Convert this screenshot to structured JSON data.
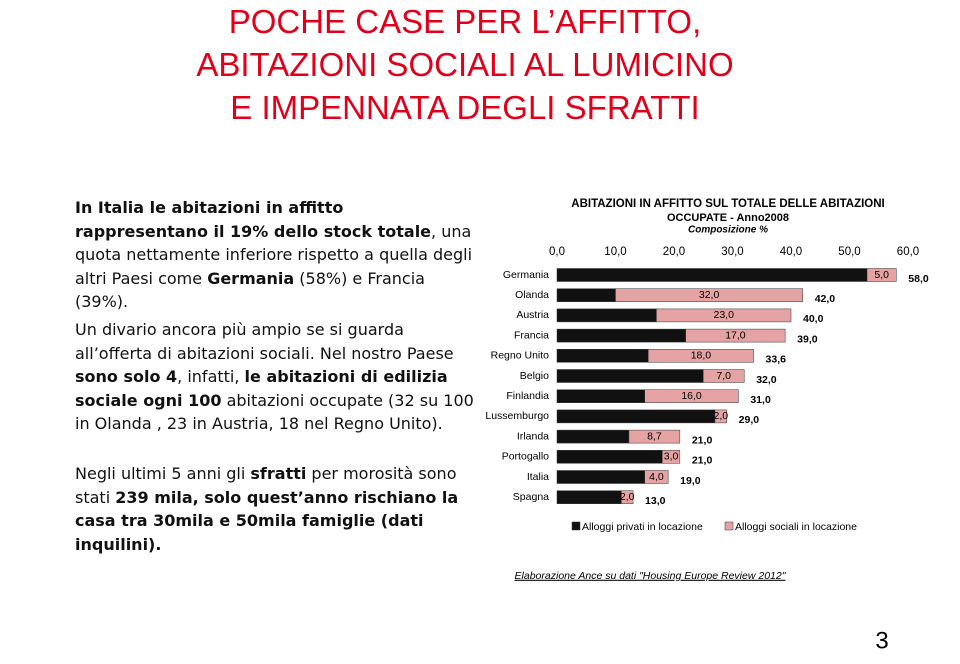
{
  "slide": {
    "title": [
      "POCHE CASE PER L’AFFITTO,",
      "ABITAZIONI SOCIALI AL LUMICINO",
      "E IMPENNATA DEGLI SFRATTI"
    ],
    "paragraphs": [
      {
        "runs": [
          {
            "text": "In Italia le abitazioni in affitto rappresentano il 19% dello stock totale",
            "bold": true
          },
          {
            "text": ", una quota nettamente inferiore rispetto a quella degli altri Paesi come ",
            "bold": false
          },
          {
            "text": "Germania",
            "bold": true
          },
          {
            "text": " (58%) e Francia (39%).",
            "bold": false
          }
        ]
      },
      {
        "runs": [
          {
            "text": "Un divario ancora più ampio se si guarda all’offerta di abitazioni sociali. Nel nostro Paese ",
            "bold": false
          },
          {
            "text": "sono solo 4",
            "bold": true
          },
          {
            "text": ", infatti, ",
            "bold": false
          },
          {
            "text": "le abitazioni di edilizia sociale ogni 100",
            "bold": true
          },
          {
            "text": " abitazioni occupate (32 su 100 in Olanda , 23 in Austria, 18 nel Regno Unito).",
            "bold": false
          }
        ]
      },
      {
        "runs": [
          {
            "text": "Negli ultimi 5 anni gli ",
            "bold": false
          },
          {
            "text": "sfratti",
            "bold": true
          },
          {
            "text": " per morosità sono stati ",
            "bold": false
          },
          {
            "text": "239 mila, solo quest’anno rischiano la casa tra 30mila e 50mila famiglie (dati inquilini).",
            "bold": true
          }
        ]
      }
    ],
    "page_number": "3"
  },
  "chart_data": {
    "type": "stacked-barh",
    "title": [
      "ABITAZIONI IN AFFITTO SUL TOTALE DELLE ABITAZIONI",
      "OCCUPATE - Anno2008",
      "Composizione %"
    ],
    "categories": [
      "Germania",
      "Olanda",
      "Austria",
      "Francia",
      "Regno Unito",
      "Belgio",
      "Finlandia",
      "Lussemburgo",
      "Irlanda",
      "Portogallo",
      "Italia",
      "Spagna"
    ],
    "series": [
      {
        "name": "Alloggi privati in locazione",
        "color": "#111111",
        "values": [
          53,
          10,
          17,
          22,
          15.6,
          25,
          15,
          27,
          12.3,
          18,
          15,
          11
        ]
      },
      {
        "name": "Alloggi sociali in locazione",
        "color": "#e6a3a3",
        "values": [
          5,
          32,
          23,
          17,
          18,
          7,
          16,
          2,
          8.7,
          3,
          4,
          2
        ],
        "value_labels": [
          "5,0",
          "32,0",
          "23,0",
          "17,0",
          "18,0",
          "7,0",
          "16,0",
          "2,0",
          "8,7",
          "3,0",
          "4,0",
          "2,0"
        ]
      }
    ],
    "totals": {
      "values": [
        58,
        42,
        40,
        39,
        33.6,
        32,
        31,
        29,
        21,
        21,
        19,
        13
      ],
      "value_labels": [
        "58,0",
        "42,0",
        "40,0",
        "39,0",
        "33,6",
        "32,0",
        "31,0",
        "29,0",
        "21,0",
        "21,0",
        "19,0",
        "13,0"
      ]
    },
    "xlim": [
      0,
      60
    ],
    "xticks": [
      {
        "value": 0,
        "label": "0,0"
      },
      {
        "value": 10,
        "label": "10,0"
      },
      {
        "value": 20,
        "label": "20,0"
      },
      {
        "value": 30,
        "label": "30,0"
      },
      {
        "value": 40,
        "label": "40,0"
      },
      {
        "value": 50,
        "label": "50,0"
      },
      {
        "value": 60,
        "label": "60,0"
      }
    ],
    "source": "Elaborazione Ance su dati \"Housing Europe Review 2012\""
  }
}
